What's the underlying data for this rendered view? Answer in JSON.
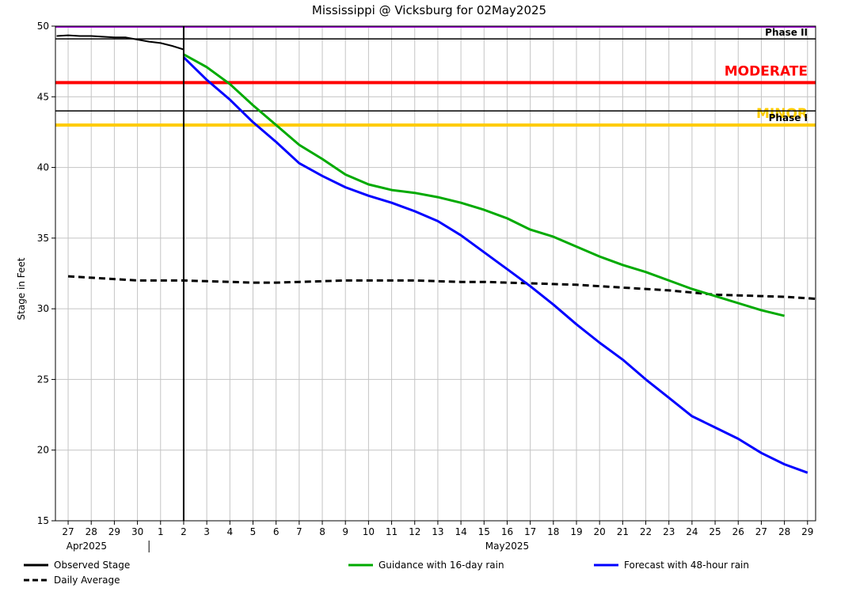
{
  "chart_data": {
    "type": "line",
    "title": "Mississippi @ Vicksburg for 02May2025",
    "ylabel": "Stage in Feet",
    "xlabel": "",
    "ylim": [
      15,
      50
    ],
    "yticks": [
      15,
      20,
      25,
      30,
      35,
      40,
      45,
      50
    ],
    "x_days_range": [
      -5.55,
      27.35
    ],
    "x_tick_labels": [
      {
        "label": "27",
        "day": -5
      },
      {
        "label": "28",
        "day": -4
      },
      {
        "label": "29",
        "day": -3
      },
      {
        "label": "30",
        "day": -2
      },
      {
        "label": "1",
        "day": -1
      },
      {
        "label": "2",
        "day": 0
      },
      {
        "label": "3",
        "day": 1
      },
      {
        "label": "4",
        "day": 2
      },
      {
        "label": "5",
        "day": 3
      },
      {
        "label": "6",
        "day": 4
      },
      {
        "label": "7",
        "day": 5
      },
      {
        "label": "8",
        "day": 6
      },
      {
        "label": "9",
        "day": 7
      },
      {
        "label": "10",
        "day": 8
      },
      {
        "label": "11",
        "day": 9
      },
      {
        "label": "12",
        "day": 10
      },
      {
        "label": "13",
        "day": 11
      },
      {
        "label": "14",
        "day": 12
      },
      {
        "label": "15",
        "day": 13
      },
      {
        "label": "16",
        "day": 14
      },
      {
        "label": "17",
        "day": 15
      },
      {
        "label": "18",
        "day": 16
      },
      {
        "label": "19",
        "day": 17
      },
      {
        "label": "20",
        "day": 18
      },
      {
        "label": "21",
        "day": 19
      },
      {
        "label": "22",
        "day": 20
      },
      {
        "label": "23",
        "day": 21
      },
      {
        "label": "24",
        "day": 22
      },
      {
        "label": "25",
        "day": 23
      },
      {
        "label": "26",
        "day": 24
      },
      {
        "label": "27",
        "day": 25
      },
      {
        "label": "28",
        "day": 26
      },
      {
        "label": "29",
        "day": 27
      }
    ],
    "month_labels": [
      {
        "label": "Apr2025",
        "day": -4.2
      },
      {
        "label": "May2025",
        "day": 14.0
      }
    ],
    "month_divider_day": -1.5,
    "current_day": 0,
    "thresholds": [
      {
        "name": "Phase II",
        "value": 49.1,
        "color": "#000000",
        "width": 1.5,
        "label_color": "#000000",
        "label_size": 12,
        "label_bold": true
      },
      {
        "name": "MODERATE",
        "value": 46.0,
        "color": "#ff0000",
        "width": 4,
        "label_color": "#ff0000",
        "label_size": 17,
        "label_bold": true
      },
      {
        "name": "MINOR",
        "value": 43.0,
        "color": "#ffcc00",
        "width": 4,
        "label_color": "#ffcc00",
        "label_size": 17,
        "label_bold": true
      },
      {
        "name": "Phase I",
        "value": 44.0,
        "color": "#000000",
        "width": 1.5,
        "label_color": "#000000",
        "label_size": 12,
        "label_bold": true
      }
    ],
    "top_line": {
      "value": 50,
      "color": "#9900cc"
    },
    "series": [
      {
        "name": "Observed Stage",
        "color": "#000000",
        "dash": "",
        "x": [
          -5.5,
          -5,
          -4.5,
          -4,
          -3.5,
          -3,
          -2.5,
          -2,
          -1.5,
          -1,
          -0.5,
          0
        ],
        "y": [
          49.3,
          49.35,
          49.3,
          49.3,
          49.25,
          49.2,
          49.2,
          49.05,
          48.9,
          48.8,
          48.6,
          48.35
        ]
      },
      {
        "name": "Daily Average",
        "color": "#000000",
        "dash": "8,5",
        "x": [
          -5,
          -4,
          -3,
          -2,
          -1,
          0,
          1,
          2,
          3,
          4,
          5,
          6,
          7,
          8,
          9,
          10,
          11,
          12,
          13,
          14,
          15,
          16,
          17,
          18,
          19,
          20,
          21,
          22,
          23,
          24,
          25,
          26,
          27,
          27.35
        ],
        "y": [
          32.3,
          32.2,
          32.1,
          32.0,
          32.0,
          32.0,
          31.95,
          31.9,
          31.85,
          31.85,
          31.9,
          31.95,
          32.0,
          32.0,
          32.0,
          32.0,
          31.95,
          31.9,
          31.9,
          31.85,
          31.8,
          31.75,
          31.7,
          31.6,
          31.5,
          31.4,
          31.3,
          31.15,
          31.0,
          30.95,
          30.9,
          30.85,
          30.75,
          30.7
        ]
      },
      {
        "name": "Guidance with 16-day rain",
        "color": "#00aa00",
        "dash": "",
        "x": [
          0,
          1,
          2,
          3,
          4,
          5,
          6,
          7,
          8,
          9,
          10,
          11,
          12,
          13,
          14,
          15,
          16,
          17,
          18,
          19,
          20,
          21,
          22,
          23,
          24,
          25,
          26
        ],
        "y": [
          48.0,
          47.1,
          45.9,
          44.4,
          43.0,
          41.6,
          40.6,
          39.5,
          38.8,
          38.4,
          38.2,
          37.9,
          37.5,
          37.0,
          36.4,
          35.6,
          35.1,
          34.4,
          33.7,
          33.1,
          32.6,
          32.0,
          31.4,
          30.9,
          30.4,
          29.9,
          29.5
        ]
      },
      {
        "name": "Forecast with 48-hour rain",
        "color": "#0000ff",
        "dash": "",
        "x": [
          0,
          1,
          2,
          3,
          4,
          5,
          6,
          7,
          8,
          9,
          10,
          11,
          12,
          13,
          14,
          15,
          16,
          17,
          18,
          19,
          20,
          21,
          22,
          23,
          24,
          25,
          26,
          27
        ],
        "y": [
          47.8,
          46.2,
          44.8,
          43.2,
          41.8,
          40.3,
          39.4,
          38.6,
          38.0,
          37.5,
          36.9,
          36.2,
          35.2,
          34.0,
          32.8,
          31.6,
          30.3,
          28.9,
          27.6,
          26.4,
          25.0,
          23.7,
          22.4,
          21.6,
          20.8,
          19.8,
          19.0,
          18.4
        ]
      }
    ],
    "legend": {
      "placement": "bottom",
      "items": [
        "Observed Stage",
        "Guidance with 16-day rain",
        "Forecast with 48-hour rain",
        "Daily Average"
      ]
    },
    "grid": true
  }
}
